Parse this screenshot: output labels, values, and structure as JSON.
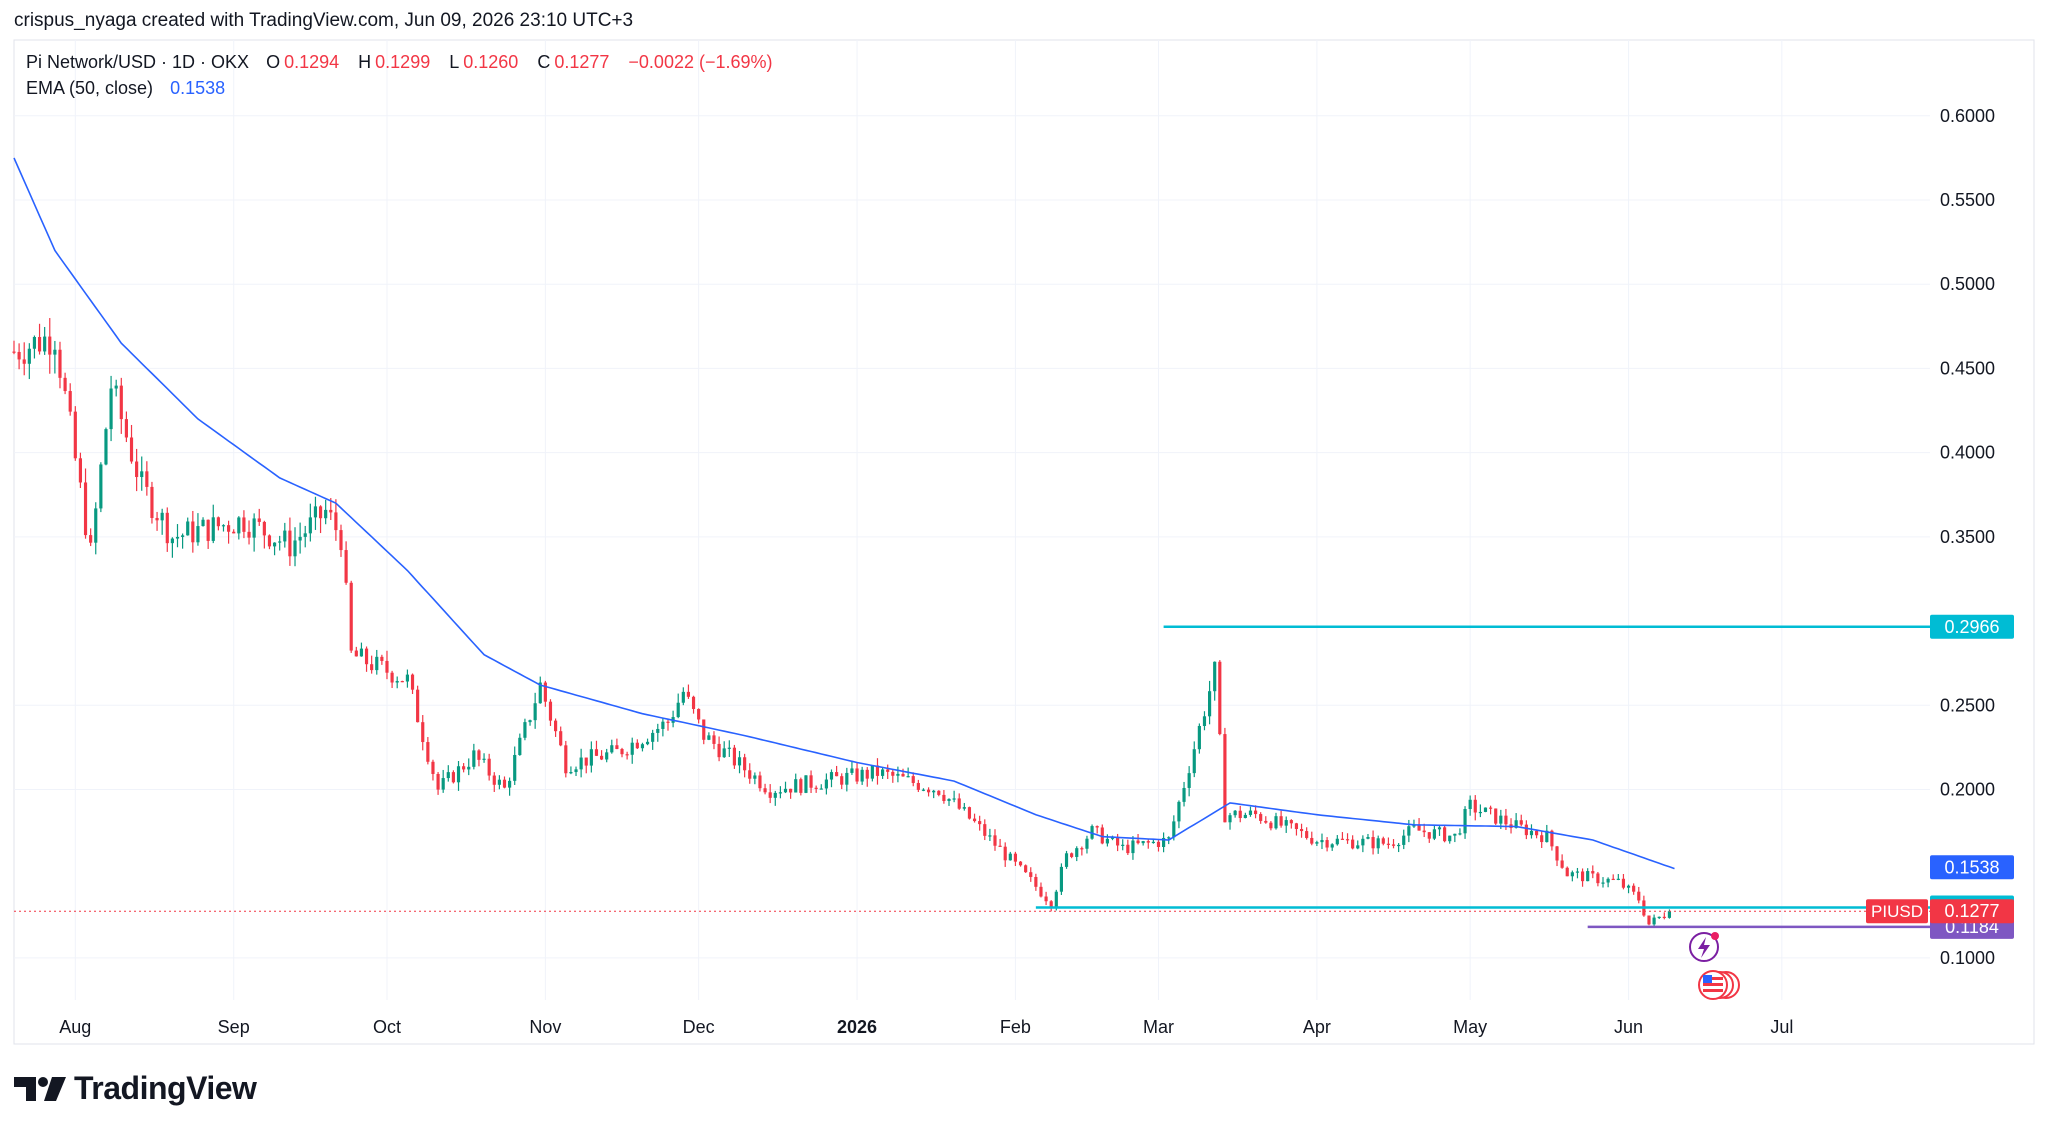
{
  "header": {
    "attribution": "crispus_nyaga created with TradingView.com, Jun 09, 2026 23:10 UTC+3"
  },
  "legend": {
    "symbol": "Pi Network/USD · 1D · OKX",
    "o_label": "O",
    "o_value": "0.1294",
    "h_label": "H",
    "h_value": "0.1299",
    "l_label": "L",
    "l_value": "0.1260",
    "c_label": "C",
    "c_value": "0.1277",
    "change": "−0.0022 (−1.69%)",
    "ema_label": "EMA (50, close)",
    "ema_value": "0.1538"
  },
  "footer": {
    "brand": "TradingView"
  },
  "colors": {
    "up": "#089981",
    "down": "#f23645",
    "ema": "#2962ff",
    "cyan": "#00bcd4",
    "purple": "#7e57c2",
    "grid": "#f0f3fa",
    "axis_text": "#131722"
  },
  "chart_data": {
    "type": "candlestick",
    "x_tick_labels": [
      "Aug",
      "Sep",
      "Oct",
      "Nov",
      "Dec",
      "2026",
      "Feb",
      "Mar",
      "Apr",
      "May",
      "Jun",
      "Jul"
    ],
    "y_tick_labels": [
      "0.6000",
      "0.5500",
      "0.5000",
      "0.4500",
      "0.4000",
      "0.3500",
      "0.2500",
      "0.2000",
      "0.1000"
    ],
    "ylim": [
      0.075,
      0.645
    ],
    "x_range": [
      "2025-07-20",
      "2026-07-30"
    ],
    "grid": true,
    "ohlc_keyframes": [
      {
        "date": "2025-07-20",
        "close": 0.46
      },
      {
        "date": "2025-07-28",
        "close": 0.47
      },
      {
        "date": "2025-08-04",
        "close": 0.34
      },
      {
        "date": "2025-08-08",
        "close": 0.44
      },
      {
        "date": "2025-08-14",
        "close": 0.38
      },
      {
        "date": "2025-08-20",
        "close": 0.35
      },
      {
        "date": "2025-09-03",
        "close": 0.36
      },
      {
        "date": "2025-09-12",
        "close": 0.345
      },
      {
        "date": "2025-09-19",
        "close": 0.365
      },
      {
        "date": "2025-09-22",
        "close": 0.35
      },
      {
        "date": "2025-09-24",
        "close": 0.28
      },
      {
        "date": "2025-10-05",
        "close": 0.265
      },
      {
        "date": "2025-10-11",
        "close": 0.2
      },
      {
        "date": "2025-10-18",
        "close": 0.22
      },
      {
        "date": "2025-10-24",
        "close": 0.2
      },
      {
        "date": "2025-10-31",
        "close": 0.262
      },
      {
        "date": "2025-11-05",
        "close": 0.215
      },
      {
        "date": "2025-11-15",
        "close": 0.222
      },
      {
        "date": "2025-11-25",
        "close": 0.24
      },
      {
        "date": "2025-11-28",
        "close": 0.258
      },
      {
        "date": "2025-12-02",
        "close": 0.232
      },
      {
        "date": "2025-12-15",
        "close": 0.2
      },
      {
        "date": "2026-01-05",
        "close": 0.21
      },
      {
        "date": "2026-01-17",
        "close": 0.2
      },
      {
        "date": "2026-01-24",
        "close": 0.18
      },
      {
        "date": "2026-02-08",
        "close": 0.133
      },
      {
        "date": "2026-02-11",
        "close": 0.16
      },
      {
        "date": "2026-02-16",
        "close": 0.175
      },
      {
        "date": "2026-02-22",
        "close": 0.165
      },
      {
        "date": "2026-03-03",
        "close": 0.17
      },
      {
        "date": "2026-03-08",
        "close": 0.225
      },
      {
        "date": "2026-03-12",
        "close": 0.27
      },
      {
        "date": "2026-03-14",
        "close": 0.185
      },
      {
        "date": "2026-03-20",
        "close": 0.185
      },
      {
        "date": "2026-04-01",
        "close": 0.17
      },
      {
        "date": "2026-04-15",
        "close": 0.168
      },
      {
        "date": "2026-04-20",
        "close": 0.176
      },
      {
        "date": "2026-04-28",
        "close": 0.172
      },
      {
        "date": "2026-05-01",
        "close": 0.19
      },
      {
        "date": "2026-05-10",
        "close": 0.178
      },
      {
        "date": "2026-05-16",
        "close": 0.172
      },
      {
        "date": "2026-05-20",
        "close": 0.15
      },
      {
        "date": "2026-05-30",
        "close": 0.145
      },
      {
        "date": "2026-06-03",
        "close": 0.135
      },
      {
        "date": "2026-06-05",
        "close": 0.12
      },
      {
        "date": "2026-06-09",
        "close": 0.1277
      }
    ],
    "ema_keyframes": [
      {
        "date": "2025-07-20",
        "value": 0.575
      },
      {
        "date": "2025-07-28",
        "value": 0.52
      },
      {
        "date": "2025-08-10",
        "value": 0.465
      },
      {
        "date": "2025-08-25",
        "value": 0.42
      },
      {
        "date": "2025-09-10",
        "value": 0.385
      },
      {
        "date": "2025-09-21",
        "value": 0.37
      },
      {
        "date": "2025-10-05",
        "value": 0.33
      },
      {
        "date": "2025-10-20",
        "value": 0.28
      },
      {
        "date": "2025-10-31",
        "value": 0.262
      },
      {
        "date": "2025-11-20",
        "value": 0.245
      },
      {
        "date": "2025-12-10",
        "value": 0.232
      },
      {
        "date": "2026-01-01",
        "value": 0.216
      },
      {
        "date": "2026-01-20",
        "value": 0.205
      },
      {
        "date": "2026-02-05",
        "value": 0.185
      },
      {
        "date": "2026-02-18",
        "value": 0.172
      },
      {
        "date": "2026-03-03",
        "value": 0.17
      },
      {
        "date": "2026-03-15",
        "value": 0.192
      },
      {
        "date": "2026-04-01",
        "value": 0.185
      },
      {
        "date": "2026-04-20",
        "value": 0.179
      },
      {
        "date": "2026-05-10",
        "value": 0.178
      },
      {
        "date": "2026-05-25",
        "value": 0.17
      },
      {
        "date": "2026-06-10",
        "value": 0.153
      }
    ],
    "horizontal_lines": [
      {
        "name": "resistance",
        "value": 0.2966,
        "label": "0.2966",
        "start": "2026-03-02",
        "color": "cyan"
      },
      {
        "name": "support",
        "value": 0.1299,
        "label": "0.1299",
        "start": "2026-02-05",
        "color": "cyan"
      },
      {
        "name": "low",
        "value": 0.1184,
        "label": "0.1184",
        "start": "2026-05-24",
        "color": "purple"
      }
    ],
    "price_labels": [
      {
        "name": "ema-price-label",
        "value": 0.1538,
        "label": "0.1538",
        "color": "ema"
      },
      {
        "name": "last-price-label",
        "value": 0.1277,
        "label": "0.1277",
        "ticker": "PIUSD",
        "color": "down"
      }
    ]
  }
}
